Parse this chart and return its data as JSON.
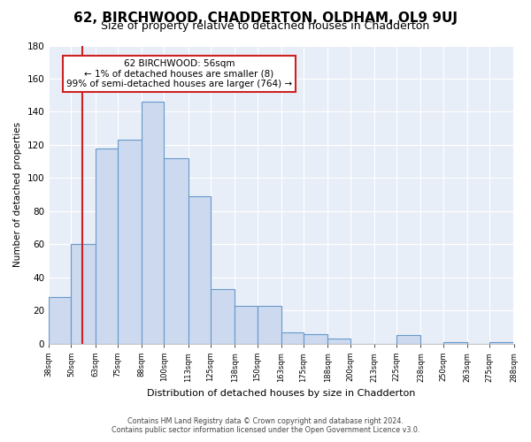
{
  "title": "62, BIRCHWOOD, CHADDERTON, OLDHAM, OL9 9UJ",
  "subtitle": "Size of property relative to detached houses in Chadderton",
  "xlabel": "Distribution of detached houses by size in Chadderton",
  "ylabel": "Number of detached properties",
  "footnote1": "Contains HM Land Registry data © Crown copyright and database right 2024.",
  "footnote2": "Contains public sector information licensed under the Open Government Licence v3.0.",
  "annotation_title": "62 BIRCHWOOD: 56sqm",
  "annotation_line1": "← 1% of detached houses are smaller (8)",
  "annotation_line2": "99% of semi-detached houses are larger (764) →",
  "marker_value": 56,
  "bin_edges": [
    38,
    50,
    63,
    75,
    88,
    100,
    113,
    125,
    138,
    150,
    163,
    175,
    188,
    200,
    213,
    225,
    238,
    250,
    263,
    275,
    288
  ],
  "bin_counts": [
    28,
    60,
    118,
    123,
    146,
    112,
    89,
    33,
    23,
    23,
    7,
    6,
    3,
    0,
    0,
    5,
    0,
    1,
    0,
    1
  ],
  "bar_color": "#ccd9ee",
  "bar_edge_color": "#6699cc",
  "marker_line_color": "#cc2222",
  "annotation_box_edge_color": "#cc2222",
  "plot_bg_color": "#e8eef7",
  "ylim": [
    0,
    180
  ],
  "yticks": [
    0,
    20,
    40,
    60,
    80,
    100,
    120,
    140,
    160,
    180
  ],
  "background_color": "#ffffff",
  "grid_color": "#ffffff",
  "title_fontsize": 11,
  "subtitle_fontsize": 9
}
